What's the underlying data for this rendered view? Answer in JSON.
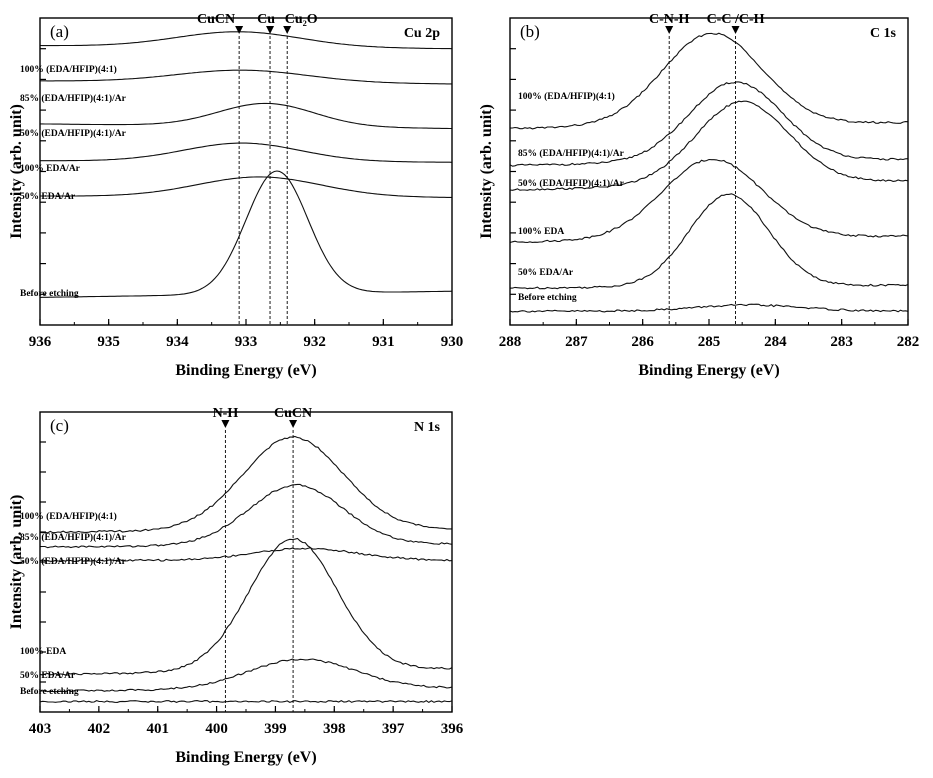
{
  "chart_data": [
    {
      "id": "a",
      "type": "line",
      "panel_label": "(a)",
      "region": "Cu 2p",
      "xlabel": "Binding Energy (eV)",
      "ylabel": "Intensity (arb. unit)",
      "xlim": [
        936,
        930
      ],
      "xticks": [
        936,
        935,
        934,
        933,
        932,
        931,
        930
      ],
      "reference_lines": [
        {
          "label": "CuCN",
          "x": 933.1
        },
        {
          "label": "Cu",
          "x": 932.65
        },
        {
          "label": "Cu₂O",
          "x": 932.4
        }
      ],
      "series": [
        {
          "name": "100% (EDA/HFIP)(4:1)",
          "baseline": 0.91,
          "amplitude": 0.05,
          "center": 933.1,
          "width": 0.9,
          "slope": -0.01
        },
        {
          "name": "85% (EDA/HFIP)(4:1)/Ar",
          "baseline": 0.795,
          "amplitude": 0.04,
          "center": 933.05,
          "width": 0.95,
          "slope": -0.01
        },
        {
          "name": "50% (EDA/HFIP)(4:1)/Ar",
          "baseline": 0.655,
          "amplitude": 0.075,
          "center": 932.7,
          "width": 0.7,
          "slope": -0.015
        },
        {
          "name": "100% EDA/Ar",
          "baseline": 0.535,
          "amplitude": 0.06,
          "center": 933.05,
          "width": 0.85,
          "slope": -0.005
        },
        {
          "name": "50% EDA/Ar",
          "baseline": 0.42,
          "amplitude": 0.065,
          "center": 932.8,
          "width": 0.9,
          "slope": -0.005
        },
        {
          "name": "Before etching",
          "baseline": 0.09,
          "amplitude": 0.4,
          "center": 932.55,
          "width": 0.45,
          "slope": 0.02
        }
      ]
    },
    {
      "id": "b",
      "type": "line",
      "panel_label": "(b)",
      "region": "C 1s",
      "xlabel": "Binding Energy (eV)",
      "ylabel": "Intensity (arb. unit)",
      "xlim": [
        288,
        282
      ],
      "xticks": [
        288,
        287,
        286,
        285,
        284,
        283,
        282
      ],
      "reference_lines": [
        {
          "label": "C-N-H",
          "x": 285.6
        },
        {
          "label": "C-C /C-H",
          "x": 284.6
        }
      ],
      "series": [
        {
          "name": "100% (EDA/HFIP)(4:1)",
          "baseline": 0.64,
          "amplitude": 0.3,
          "center": 284.95,
          "width": 0.75,
          "slope": 0.02
        },
        {
          "name": "85% (EDA/HFIP)(4:1)/Ar",
          "baseline": 0.52,
          "amplitude": 0.26,
          "center": 284.6,
          "width": 0.7,
          "slope": 0.02
        },
        {
          "name": "50% (EDA/HFIP)(4:1)/Ar",
          "baseline": 0.44,
          "amplitude": 0.27,
          "center": 284.5,
          "width": 0.7,
          "slope": 0.03
        },
        {
          "name": "100% EDA",
          "baseline": 0.27,
          "amplitude": 0.26,
          "center": 284.95,
          "width": 0.75,
          "slope": 0.02
        },
        {
          "name": "50% EDA/Ar",
          "baseline": 0.12,
          "amplitude": 0.3,
          "center": 284.7,
          "width": 0.6,
          "slope": 0.01
        },
        {
          "name": "Before etching",
          "baseline": 0.045,
          "amplitude": 0.02,
          "center": 284.4,
          "width": 0.8,
          "slope": 0.0
        }
      ]
    },
    {
      "id": "c",
      "type": "line",
      "panel_label": "(c)",
      "region": "N 1s",
      "xlabel": "Binding Energy (eV)",
      "ylabel": "Intensity (arb. unit)",
      "xlim": [
        403,
        396
      ],
      "xticks": [
        403,
        402,
        401,
        400,
        399,
        398,
        397,
        396
      ],
      "reference_lines": [
        {
          "label": "N-H",
          "x": 399.85
        },
        {
          "label": "CuCN",
          "x": 398.7
        }
      ],
      "series": [
        {
          "name": "100% (EDA/HFIP)(4:1)",
          "baseline": 0.6,
          "amplitude": 0.31,
          "center": 398.7,
          "width": 0.85,
          "slope": 0.01
        },
        {
          "name": "85% (EDA/HFIP)(4:1)/Ar",
          "baseline": 0.55,
          "amplitude": 0.2,
          "center": 398.65,
          "width": 0.8,
          "slope": 0.01
        },
        {
          "name": "50% (EDA/HFIP)(4:1)/Ar",
          "baseline": 0.505,
          "amplitude": 0.04,
          "center": 398.5,
          "width": 0.9,
          "slope": 0.0
        },
        {
          "name": "100% EDA",
          "baseline": 0.125,
          "amplitude": 0.44,
          "center": 398.7,
          "width": 0.75,
          "slope": 0.02
        },
        {
          "name": "50% EDA/Ar",
          "baseline": 0.07,
          "amplitude": 0.1,
          "center": 398.55,
          "width": 0.9,
          "slope": 0.01
        },
        {
          "name": "Before etching",
          "baseline": 0.035,
          "amplitude": 0.0,
          "center": 399.5,
          "width": 1.0,
          "slope": 0.0
        }
      ]
    }
  ]
}
